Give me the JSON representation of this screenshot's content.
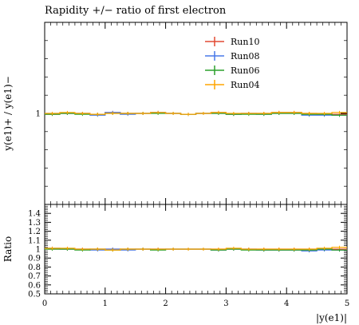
{
  "chart_data": [
    {
      "type": "line",
      "title": "Rapidity +/− ratio of first electron",
      "ylabel": "y(e1)+ / y(e1)−",
      "xlabel": "",
      "xlim": [
        0,
        5
      ],
      "ylim": [
        0.0,
        2.0
      ],
      "yticks": [
        {
          "v": 1,
          "label": "1"
        }
      ],
      "x_edges": [
        0,
        0.25,
        0.5,
        0.75,
        1.0,
        1.25,
        1.5,
        1.75,
        2.0,
        2.25,
        2.5,
        2.75,
        3.0,
        3.25,
        3.5,
        3.75,
        4.0,
        4.25,
        4.5,
        4.75,
        5.0
      ],
      "legend_position": "top-right",
      "series": [
        {
          "name": "Run10",
          "color": "#e24a33",
          "values": [
            0.99,
            1.0,
            1.0,
            0.99,
            1.01,
            1.0,
            1.0,
            1.01,
            1.0,
            0.99,
            1.0,
            1.01,
            0.99,
            1.0,
            1.0,
            1.01,
            1.01,
            1.0,
            0.99,
            0.99
          ]
        },
        {
          "name": "Run08",
          "color": "#4878e8",
          "values": [
            1.0,
            1.0,
            1.0,
            0.98,
            1.01,
            0.99,
            1.0,
            1.01,
            1.0,
            0.99,
            1.0,
            1.0,
            0.99,
            1.0,
            0.99,
            1.0,
            1.0,
            0.98,
            0.98,
            0.98
          ]
        },
        {
          "name": "Run06",
          "color": "#2ca02c",
          "values": [
            0.99,
            1.0,
            0.99,
            0.99,
            1.0,
            1.0,
            1.0,
            1.0,
            1.0,
            0.99,
            1.0,
            1.0,
            0.99,
            0.99,
            0.99,
            1.0,
            1.0,
            0.99,
            0.99,
            0.98
          ]
        },
        {
          "name": "Run04",
          "color": "#ffa500",
          "values": [
            1.0,
            1.01,
            1.0,
            0.99,
            1.0,
            1.0,
            1.0,
            1.01,
            1.0,
            0.99,
            1.0,
            1.01,
            1.0,
            1.0,
            1.0,
            1.01,
            1.01,
            1.0,
            1.0,
            1.01
          ]
        }
      ]
    },
    {
      "type": "line",
      "title": "",
      "ylabel": "Ratio",
      "xlabel": "|y(e1)|",
      "xlim": [
        0,
        5
      ],
      "ylim": [
        0.5,
        1.5
      ],
      "yticks": [
        {
          "v": 0.5,
          "label": "0.5"
        },
        {
          "v": 0.6,
          "label": "0.6"
        },
        {
          "v": 0.7,
          "label": "0.7"
        },
        {
          "v": 0.8,
          "label": "0.8"
        },
        {
          "v": 0.9,
          "label": "0.9"
        },
        {
          "v": 1.0,
          "label": "1"
        },
        {
          "v": 1.1,
          "label": "1.1"
        },
        {
          "v": 1.2,
          "label": "1.2"
        },
        {
          "v": 1.3,
          "label": "1.3"
        },
        {
          "v": 1.4,
          "label": "1.4"
        }
      ],
      "xticks": [
        {
          "v": 0,
          "label": "0"
        },
        {
          "v": 1,
          "label": "1"
        },
        {
          "v": 2,
          "label": "2"
        },
        {
          "v": 3,
          "label": "3"
        },
        {
          "v": 4,
          "label": "4"
        },
        {
          "v": 5,
          "label": "5"
        }
      ],
      "x_edges": [
        0,
        0.25,
        0.5,
        0.75,
        1.0,
        1.25,
        1.5,
        1.75,
        2.0,
        2.25,
        2.5,
        2.75,
        3.0,
        3.25,
        3.5,
        3.75,
        4.0,
        4.25,
        4.5,
        4.75,
        5.0
      ],
      "series": [
        {
          "name": "Run10",
          "color": "#e24a33",
          "values": [
            1.0,
            1.0,
            1.0,
            1.0,
            1.0,
            1.0,
            1.0,
            1.0,
            1.0,
            1.0,
            1.0,
            1.0,
            1.0,
            1.0,
            1.0,
            1.0,
            1.0,
            1.0,
            1.0,
            1.0
          ]
        },
        {
          "name": "Run08",
          "color": "#4878e8",
          "values": [
            1.01,
            1.0,
            1.0,
            0.99,
            1.0,
            0.99,
            1.0,
            1.0,
            1.0,
            1.0,
            1.0,
            0.99,
            1.0,
            1.0,
            0.99,
            0.99,
            0.99,
            0.98,
            0.99,
            0.99
          ]
        },
        {
          "name": "Run06",
          "color": "#2ca02c",
          "values": [
            1.0,
            1.0,
            0.99,
            1.0,
            0.99,
            1.0,
            1.0,
            0.99,
            1.0,
            1.0,
            1.0,
            0.99,
            1.0,
            0.99,
            0.99,
            0.99,
            0.99,
            0.99,
            1.0,
            0.99
          ]
        },
        {
          "name": "Run04",
          "color": "#ffa500",
          "values": [
            1.01,
            1.01,
            1.0,
            1.0,
            0.99,
            1.0,
            1.0,
            1.0,
            1.0,
            1.0,
            1.0,
            1.0,
            1.01,
            1.0,
            1.0,
            1.0,
            1.0,
            1.0,
            1.01,
            1.02
          ]
        }
      ]
    }
  ]
}
